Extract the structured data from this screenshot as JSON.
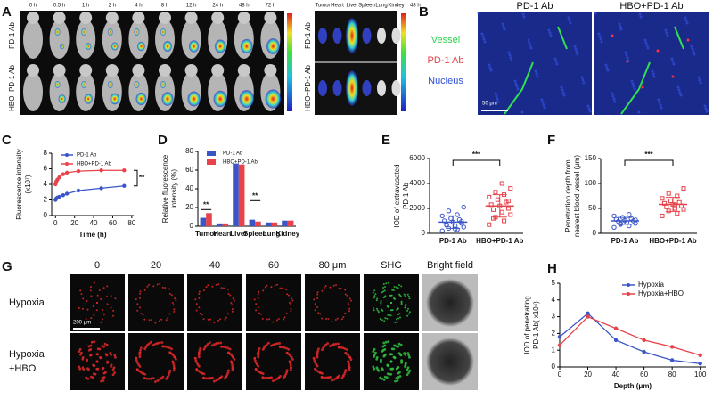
{
  "panels": {
    "A": {
      "letter": "A",
      "times": [
        "0 h",
        "0.5 h",
        "1 h",
        "2 h",
        "4 h",
        "8 h",
        "12 h",
        "24 h",
        "48 h",
        "72 h"
      ],
      "rows": [
        "PD-1 Ab",
        "HBO+PD-1 Ab"
      ],
      "organs": [
        "Tumor",
        "Heart",
        "Liver",
        "Spleen",
        "Lung",
        "Kindey"
      ],
      "organ_rows": [
        "PD-1 Ab",
        "HBO+PD-1 Ab"
      ],
      "organ_time": "48 h"
    },
    "B": {
      "letter": "B",
      "columns": [
        "PD-1 Ab",
        "HBO+PD-1 Ab"
      ],
      "legend": [
        "Vessel",
        "PD-1 Ab",
        "Nucleus"
      ],
      "scale": "50 μm"
    },
    "G": {
      "letter": "G",
      "columns": [
        "0",
        "20",
        "40",
        "60",
        "80 μm",
        "SHG",
        "Bright field"
      ],
      "rows": [
        [
          "Hypoxia"
        ],
        [
          "Hypoxia",
          "+HBO"
        ]
      ],
      "scale": "200 μm"
    }
  },
  "chart_data": [
    {
      "type": "line",
      "panel": "C",
      "ylabel": [
        "Fluorescence intensity",
        "(x10⁷)"
      ],
      "xlabel": "Time (h)",
      "x": [
        0,
        0.5,
        1,
        2,
        4,
        8,
        12,
        24,
        48,
        72
      ],
      "series": [
        {
          "name": "PD-1 Ab",
          "color": "#3a55c8",
          "values": [
            2.0,
            2.1,
            2.2,
            2.3,
            2.4,
            2.6,
            2.8,
            3.2,
            3.5,
            3.8
          ]
        },
        {
          "name": "HBO+PD-1 Ab",
          "color": "#e8434a",
          "values": [
            4.0,
            4.2,
            4.4,
            4.6,
            4.9,
            5.3,
            5.5,
            5.7,
            5.8,
            5.8
          ]
        }
      ],
      "xlim": [
        -4,
        82
      ],
      "ylim": [
        0,
        8
      ],
      "xticks": [
        0,
        20,
        40,
        60,
        80
      ],
      "yticks": [
        0,
        2,
        4,
        6,
        8
      ],
      "annotations": [
        "**"
      ]
    },
    {
      "type": "bar",
      "panel": "D",
      "ylabel": [
        "Relative fluorescence",
        "intensity (%)"
      ],
      "categories": [
        "Tumor",
        "Heart",
        "Liver",
        "Spleen",
        "Lung",
        "Kidney"
      ],
      "series": [
        {
          "name": "PD-1 Ab",
          "color": "#3a55c8",
          "values": [
            9,
            3,
            67,
            7,
            4,
            6
          ]
        },
        {
          "name": "HBO+PD-1 Ab",
          "color": "#e8434a",
          "values": [
            14,
            3,
            66,
            5,
            4,
            6
          ]
        }
      ],
      "ylim": [
        0,
        80
      ],
      "yticks": [
        0,
        20,
        40,
        60,
        80
      ],
      "annotations": [
        "**",
        "**"
      ]
    },
    {
      "type": "dot",
      "panel": "E",
      "ylabel": [
        "IOD of extravasated",
        "PD-1 Ab"
      ],
      "categories": [
        "PD-1 Ab",
        "HBO+PD-1 Ab"
      ],
      "colors": [
        "#3a55c8",
        "#e8434a"
      ],
      "values": [
        [
          200,
          300,
          400,
          500,
          600,
          700,
          800,
          900,
          1000,
          1100,
          1200,
          1400,
          1500,
          1800,
          2100,
          350,
          650,
          950
        ],
        [
          700,
          1000,
          1300,
          1500,
          1700,
          1900,
          2000,
          2200,
          2300,
          2500,
          2700,
          2900,
          3100,
          3300,
          3600,
          4000,
          1200,
          2600
        ]
      ],
      "mean": [
        900,
        2200
      ],
      "sd": [
        500,
        900
      ],
      "ylim": [
        0,
        6000
      ],
      "yticks": [
        0,
        2000,
        4000,
        6000
      ],
      "annotations": [
        "***"
      ]
    },
    {
      "type": "dot",
      "panel": "F",
      "ylabel": [
        "Penetration depth from",
        "nearest blood vessel (μm)"
      ],
      "categories": [
        "PD-1 Ab",
        "HBO+PD-1 Ab"
      ],
      "colors": [
        "#3a55c8",
        "#e8434a"
      ],
      "values": [
        [
          12,
          15,
          18,
          20,
          22,
          24,
          25,
          26,
          28,
          30,
          32,
          35,
          38,
          20,
          27
        ],
        [
          35,
          40,
          45,
          48,
          50,
          53,
          55,
          58,
          60,
          62,
          65,
          70,
          75,
          80,
          90,
          57
        ]
      ],
      "mean": [
        25,
        58
      ],
      "sd": [
        7,
        14
      ],
      "ylim": [
        0,
        150
      ],
      "yticks": [
        0,
        50,
        100,
        150
      ],
      "annotations": [
        "***"
      ]
    },
    {
      "type": "line",
      "panel": "H",
      "ylabel": [
        "IOD of penetrating",
        "PD-1 Ab( x10⁴)"
      ],
      "xlabel": "Depth (μm)",
      "x": [
        0,
        20,
        40,
        60,
        80,
        100
      ],
      "series": [
        {
          "name": "Hypoxia",
          "color": "#3a55c8",
          "values": [
            1.8,
            3.2,
            1.6,
            0.9,
            0.4,
            0.2
          ]
        },
        {
          "name": "Hypoxia+HBO",
          "color": "#e8434a",
          "values": [
            1.3,
            3.0,
            2.3,
            1.6,
            1.2,
            0.7
          ]
        }
      ],
      "xlim": [
        0,
        104
      ],
      "ylim": [
        0,
        5
      ],
      "xticks": [
        0,
        20,
        40,
        60,
        80,
        100
      ],
      "yticks": [
        0,
        1,
        2,
        3,
        4,
        5
      ]
    }
  ]
}
